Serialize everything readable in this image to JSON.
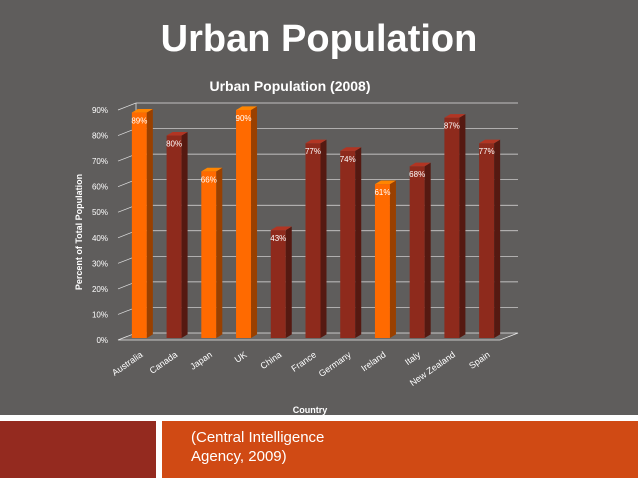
{
  "slide": {
    "title": "Urban Population",
    "citation": " (Central Intelligence\nAgency, 2009)"
  },
  "colors": {
    "background": "#5f5d5c",
    "orange_bar": "#ff6a00",
    "red_bar": "#8e2a1c",
    "footer_left": "#942a1f",
    "footer_right": "#d04a14"
  },
  "chart_data": {
    "type": "bar",
    "title": "Urban Population (2008)",
    "xlabel": "Country",
    "ylabel": "Percent of Total Population",
    "ylim": [
      0,
      90
    ],
    "yticks": [
      "0%",
      "10%",
      "20%",
      "30%",
      "40%",
      "50%",
      "60%",
      "70%",
      "80%",
      "90%"
    ],
    "grid": true,
    "categories": [
      "Australia",
      "Canada",
      "Japan",
      "UK",
      "China",
      "France",
      "Germany",
      "Ireland",
      "Italy",
      "New Zealand",
      "Spain"
    ],
    "values": [
      89,
      80,
      66,
      90,
      43,
      77,
      74,
      61,
      68,
      87,
      77
    ],
    "data_labels": [
      "89%",
      "80%",
      "66%",
      "90%",
      "43%",
      "77%",
      "74%",
      "61%",
      "68%",
      "87%",
      "77%"
    ],
    "bar_colors": [
      "orange",
      "red",
      "orange",
      "orange",
      "red",
      "red",
      "red",
      "orange",
      "red",
      "red",
      "red"
    ]
  }
}
